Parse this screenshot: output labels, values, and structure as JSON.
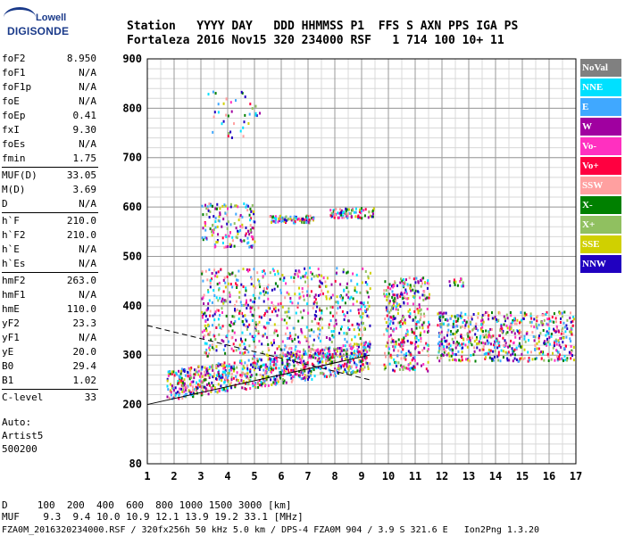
{
  "logo": {
    "line1": "Lowell",
    "line2": "DIGISONDE"
  },
  "header": {
    "labels": "Station   YYYY DAY   DDD HHMMSS P1  FFS S AXN PPS IGA PS",
    "values": "Fortaleza 2016 Nov15 320 234000 RSF   1 714 100 10+ 11"
  },
  "params": [
    {
      "label": "foF2",
      "value": "8.950"
    },
    {
      "label": "foF1",
      "value": "N/A"
    },
    {
      "label": "foF1p",
      "value": "N/A"
    },
    {
      "label": "foE",
      "value": "N/A"
    },
    {
      "label": "foEp",
      "value": "0.41"
    },
    {
      "label": "fxI",
      "value": "9.30"
    },
    {
      "label": "foEs",
      "value": "N/A"
    },
    {
      "label": "fmin",
      "value": "1.75"
    },
    {
      "label": "MUF(D)",
      "value": "33.05"
    },
    {
      "label": "M(D)",
      "value": "3.69"
    },
    {
      "label": "D",
      "value": "N/A"
    },
    {
      "label": "h`F",
      "value": "210.0"
    },
    {
      "label": "h`F2",
      "value": "210.0"
    },
    {
      "label": "h`E",
      "value": "N/A"
    },
    {
      "label": "h`Es",
      "value": "N/A"
    },
    {
      "label": "hmF2",
      "value": "263.0"
    },
    {
      "label": "hmF1",
      "value": "N/A"
    },
    {
      "label": "hmE",
      "value": "110.0"
    },
    {
      "label": "yF2",
      "value": "23.3"
    },
    {
      "label": "yF1",
      "value": "N/A"
    },
    {
      "label": "yE",
      "value": "20.0"
    },
    {
      "label": "B0",
      "value": "29.4"
    },
    {
      "label": "B1",
      "value": "1.02"
    },
    {
      "label": "C-level",
      "value": "33"
    }
  ],
  "auto": {
    "line1": "Auto:",
    "line2": "Artist5",
    "line3": "500200"
  },
  "legend": [
    {
      "label": "NoVal",
      "color": "#808080"
    },
    {
      "label": "NNE",
      "color": "#00e0ff"
    },
    {
      "label": "E",
      "color": "#40a8ff"
    },
    {
      "label": "W",
      "color": "#a000a0"
    },
    {
      "label": "Vo-",
      "color": "#ff30c0"
    },
    {
      "label": "Vo+",
      "color": "#ff0040"
    },
    {
      "label": "SSW",
      "color": "#ffa0a0"
    },
    {
      "label": "X-",
      "color": "#008000"
    },
    {
      "label": "X+",
      "color": "#90c060"
    },
    {
      "label": "SSE",
      "color": "#d0d000"
    },
    {
      "label": "NNW",
      "color": "#2000c0"
    }
  ],
  "footer": {
    "d_row": "D     100  200  400  600  800 1000 1500 3000 [km]",
    "muf_row": "MUF    9.3  9.4 10.0 10.9 12.1 13.9 19.2 33.1 [MHz]",
    "file_row": "FZA0M_2016320234000.RSF / 320fx256h 50 kHz 5.0 km / DPS-4 FZA0M 904 / 3.9 S 321.6 E   Ion2Png 1.3.20"
  },
  "chart_data": {
    "type": "scatter",
    "xlim": [
      1,
      17
    ],
    "ylim": [
      80,
      900
    ],
    "x_ticks": [
      1,
      2,
      3,
      4,
      5,
      6,
      7,
      8,
      9,
      10,
      11,
      12,
      13,
      14,
      15,
      16,
      17
    ],
    "y_ticks": [
      80,
      200,
      300,
      400,
      500,
      600,
      700,
      800,
      900
    ],
    "grid": true,
    "xlabel": "",
    "ylabel": "",
    "clusters": [
      {
        "x": [
          1.7,
          9.3
        ],
        "y": [
          200,
          300
        ],
        "note": "main F-trace"
      },
      {
        "x": [
          3.0,
          9.3
        ],
        "y": [
          300,
          480
        ]
      },
      {
        "x": [
          3.0,
          5.0
        ],
        "y": [
          530,
          600
        ]
      },
      {
        "x": [
          5.5,
          9.5
        ],
        "y": [
          570,
          600
        ]
      },
      {
        "x": [
          9.8,
          11.5
        ],
        "y": [
          270,
          460
        ]
      },
      {
        "x": [
          11.8,
          16.9
        ],
        "y": [
          290,
          390
        ]
      }
    ],
    "trace_line": {
      "x": [
        1.0,
        9.3
      ],
      "y": [
        200,
        300
      ]
    },
    "dashed_line": {
      "x": [
        1.0,
        9.3
      ],
      "y": [
        360,
        250
      ]
    }
  }
}
